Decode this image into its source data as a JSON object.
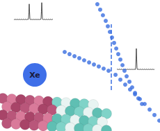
{
  "chart_data": {
    "type": "scatter",
    "series": [
      {
        "color": "#3a6ee0",
        "marker": "circle",
        "x": [
          37.9,
          40.7,
          43.4,
          46.2,
          48.3,
          50.3,
          52.4,
          54.5,
          56.6,
          58.6,
          60.7,
          62.8,
          64.8,
          66.9,
          69.7,
          72.4,
          75.2,
          78.6,
          82.1
        ],
        "values": [
          96.6,
          92.2,
          87.7,
          83.2,
          78.8,
          74.3,
          69.8,
          65.4,
          60.9,
          56.4,
          52.0,
          47.5,
          43.0,
          38.5,
          34.1,
          29.6,
          25.1,
          20.7,
          16.2
        ]
      },
      {
        "color": "#3a6ee0",
        "marker": "circle",
        "x": [
          5.5,
          10.3,
          15.2,
          20.0,
          24.8,
          29.7,
          34.5,
          39.3,
          44.1,
          49.0,
          55.9,
          60.7,
          65.5,
          70.3,
          75.2,
          80.0,
          84.8,
          89.7,
          94.5,
          99.3
        ],
        "values": [
          58.1,
          56.4,
          54.7,
          53.1,
          51.4,
          49.7,
          48.0,
          46.4,
          44.7,
          43.0,
          39.7,
          35.8,
          31.8,
          27.9,
          24.0,
          20.1,
          16.2,
          11.7,
          7.3,
          2.8
        ]
      }
    ],
    "vline": {
      "x": 51.7,
      "y": [
        27.4,
        80.4
      ],
      "color": "#3a6ee0",
      "line_style": "dashed"
    },
    "xlim": [
      0,
      100
    ],
    "ylim": [
      0,
      100
    ],
    "tick_labels": false,
    "grid": false,
    "annotations": [
      "Xe"
    ]
  }
}
